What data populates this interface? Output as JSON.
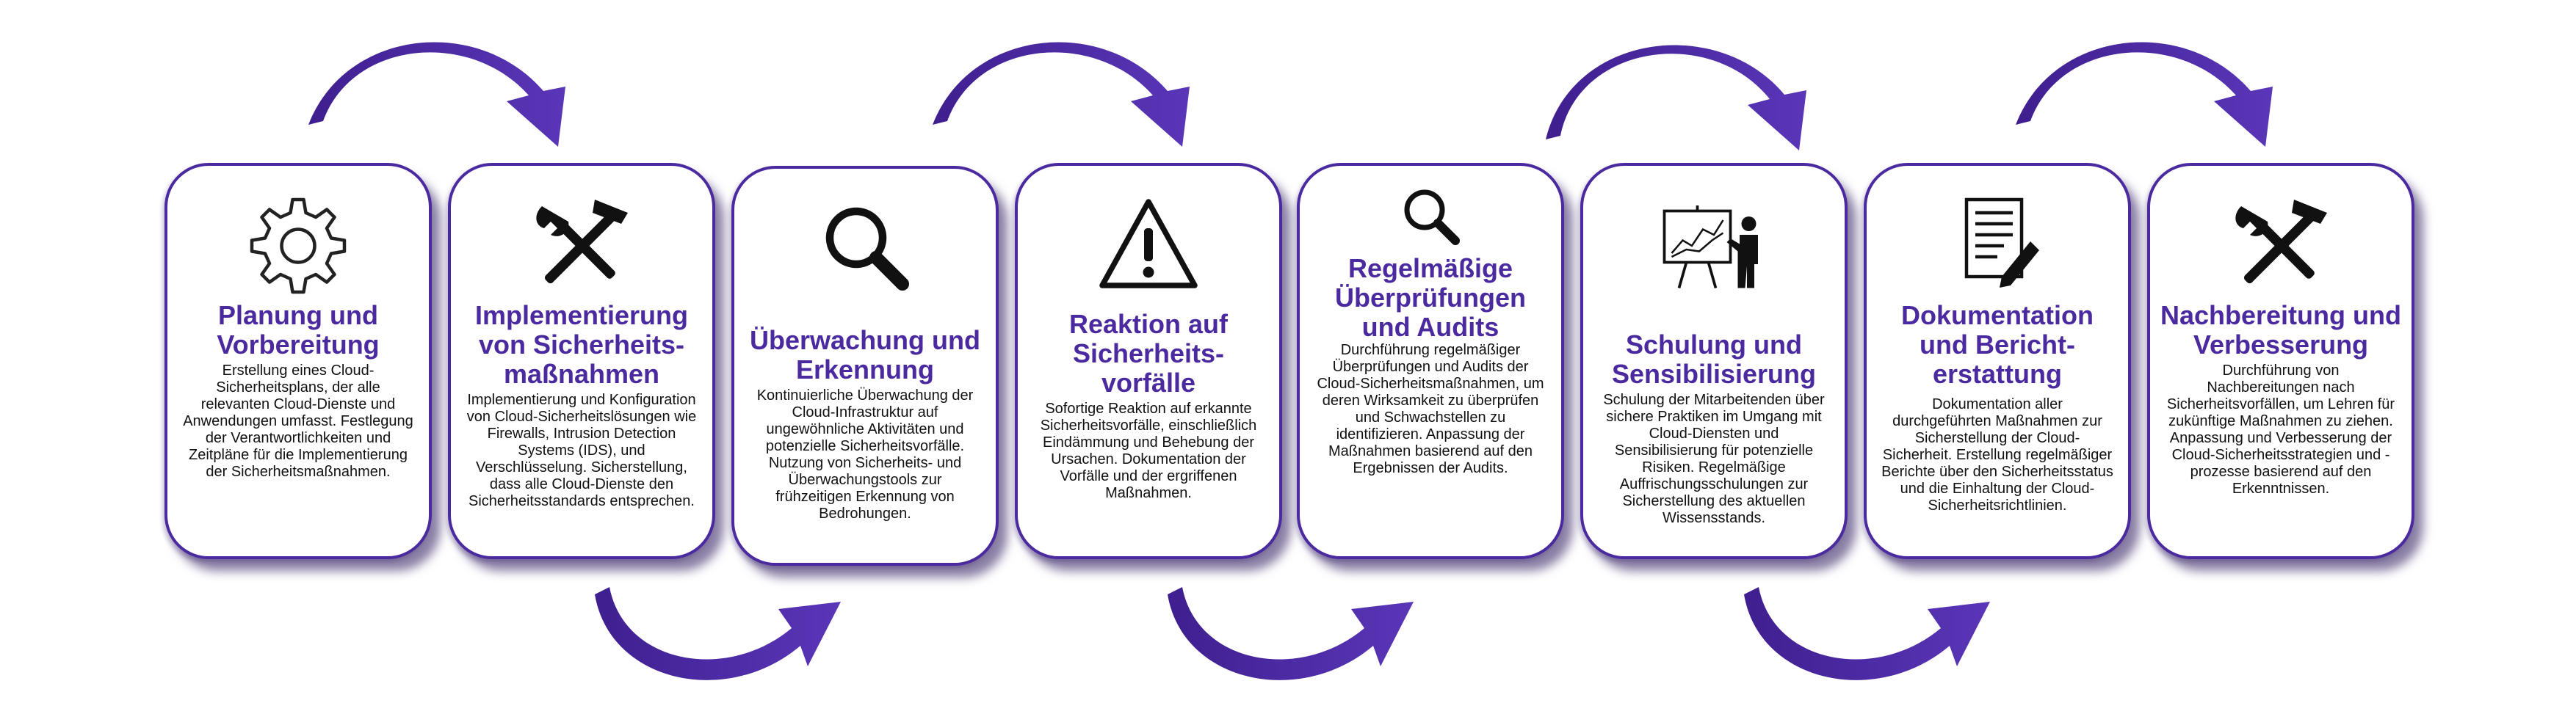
{
  "accent_color": "#4b2aa0",
  "steps": [
    {
      "icon": "gear-icon",
      "title": "Planung und Vorbereitung",
      "description": "Erstellung eines Cloud-Sicherheitsplans, der alle relevanten Cloud-Dienste und Anwendungen umfasst. Festlegung der Verantwortlichkeiten und Zeitpläne für die Implementierung der Sicherheitsmaßnahmen."
    },
    {
      "icon": "tools-icon",
      "title": "Implementierung von Sicherheits-maßnahmen",
      "description": "Implementierung und Konfiguration von Cloud-Sicherheitslösungen wie Firewalls, Intrusion Detection Systems (IDS), und Verschlüsselung. Sicherstellung, dass alle Cloud-Dienste den Sicherheitsstandards entsprechen."
    },
    {
      "icon": "magnifier-icon",
      "title": "Überwachung und Erkennung",
      "description": "Kontinuierliche Überwachung der Cloud-Infrastruktur auf ungewöhnliche Aktivitäten und potenzielle Sicherheitsvorfälle. Nutzung von Sicherheits- und Überwachungstools zur frühzeitigen Erkennung von Bedrohungen."
    },
    {
      "icon": "warning-icon",
      "title": "Reaktion auf Sicherheits-vorfälle",
      "description": "Sofortige Reaktion auf erkannte Sicherheitsvorfälle, einschließlich Eindämmung und Behebung der Ursachen. Dokumentation der Vorfälle und der ergriffenen Maßnahmen."
    },
    {
      "icon": "magnifier-icon",
      "title": "Regelmäßige Überprüfungen und Audits",
      "description": "Durchführung regelmäßiger Überprüfungen und Audits der Cloud-Sicherheitsmaßnahmen, um deren Wirksamkeit zu überprüfen und Schwachstellen zu identifizieren. Anpassung der Maßnahmen basierend auf den Ergebnissen der Audits."
    },
    {
      "icon": "presentation-icon",
      "title": "Schulung und Sensibilisierung",
      "description": "Schulung der Mitarbeitenden über sichere Praktiken im Umgang mit Cloud-Diensten und Sensibilisierung für potenzielle Risiken. Regelmäßige Auffrischungsschulungen zur Sicherstellung des aktuellen Wissensstands."
    },
    {
      "icon": "document-icon",
      "title": "Dokumentation und Bericht-erstattung",
      "description": "Dokumentation aller durchgeführten Maßnahmen zur Sicherstellung der Cloud-Sicherheit. Erstellung regelmäßiger Berichte über den Sicherheitsstatus und die Einhaltung der Cloud-Sicherheitsrichtlinien."
    },
    {
      "icon": "tools-icon",
      "title": "Nachbereitung und Verbesserung",
      "description": "Durchführung von Nachbereitungen nach Sicherheitsvorfällen, um Lehren für zukünftige Maßnahmen zu ziehen. Anpassung und Verbesserung der Cloud-Sicherheitsstrategien und -prozesse basierend auf den Erkenntnissen."
    }
  ]
}
